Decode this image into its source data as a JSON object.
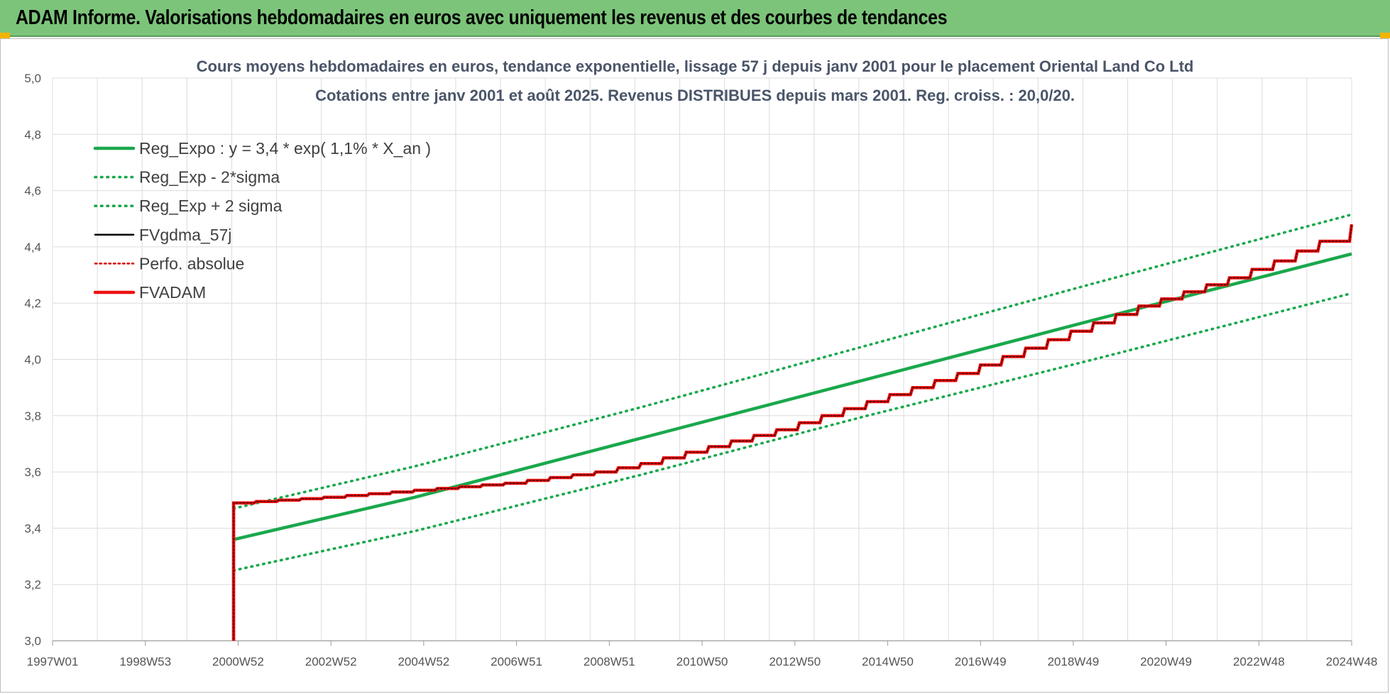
{
  "header": {
    "title": "ADAM Informe. Valorisations hebdomadaires en euros avec uniquement les revenus et des courbes de tendances"
  },
  "colors": {
    "header_bg": "#7cc47a",
    "reg_green": "#1aa84c",
    "fvgdma_black": "#000000",
    "fvadam_red": "#ee1111",
    "perfo_red": "#d40000"
  },
  "chart_data": {
    "type": "line",
    "title": "Cours moyens hebdomadaires en euros, tendance exponentielle, lissage 57 j depuis janv 2001 pour le placement Oriental Land Co Ltd",
    "subtitle": "Cotations entre janv 2001 et août 2025. Revenus DISTRIBUES depuis mars 2001. Reg. croiss. : 20,0/20.",
    "xlabel": "",
    "ylabel": "",
    "x_tick_labels": [
      "1997W01",
      "1998W53",
      "2000W52",
      "2002W52",
      "2004W52",
      "2006W51",
      "2008W51",
      "2010W50",
      "2012W50",
      "2014W50",
      "2016W49",
      "2018W49",
      "2020W49",
      "2022W48",
      "2024W48"
    ],
    "xlim": [
      1997.0,
      2025.7
    ],
    "y_tick_labels": [
      "3,0",
      "3,2",
      "3,4",
      "3,6",
      "3,8",
      "4,0",
      "4,2",
      "4,4",
      "4,6",
      "4,8",
      "5,0"
    ],
    "ylim": [
      3.0,
      5.0
    ],
    "grid": true,
    "legend_position": "top-left",
    "legend": [
      {
        "label": "Reg_Expo : y = 3,4 * exp( 1,1% *  X_an )",
        "style": "solid-green"
      },
      {
        "label": "Reg_Exp - 2*sigma",
        "style": "dotted-green"
      },
      {
        "label": "Reg_Exp + 2 sigma",
        "style": "dotted-green"
      },
      {
        "label": "FVgdma_57j",
        "style": "solid-black"
      },
      {
        "label": "Perfo. absolue",
        "style": "dotted-red"
      },
      {
        "label": "FVADAM",
        "style": "solid-red"
      }
    ],
    "series": [
      {
        "name": "Reg_Expo : y = 3,4 * exp( 1,1% *  X_an )",
        "x": [
          2001.0,
          2005.0,
          2010.0,
          2015.0,
          2020.0,
          2025.7
        ],
        "y": [
          3.36,
          3.51,
          3.72,
          3.93,
          4.14,
          4.375
        ]
      },
      {
        "name": "Reg_Exp - 2*sigma",
        "x": [
          2001.0,
          2005.0,
          2010.0,
          2015.0,
          2020.0,
          2025.7
        ],
        "y": [
          3.25,
          3.39,
          3.59,
          3.8,
          4.0,
          4.235
        ]
      },
      {
        "name": "Reg_Exp + 2 sigma",
        "x": [
          2001.0,
          2005.0,
          2010.0,
          2015.0,
          2020.0,
          2025.7
        ],
        "y": [
          3.47,
          3.62,
          3.83,
          4.05,
          4.27,
          4.515
        ]
      },
      {
        "name": "FVgdma_57j",
        "x": [
          2001.0,
          2001.0,
          2003.0,
          2005.0,
          2007.0,
          2009.0,
          2010.0,
          2011.0,
          2012.0,
          2013.0,
          2014.0,
          2015.0,
          2016.0,
          2017.0,
          2018.0,
          2019.0,
          2020.0,
          2021.0,
          2022.0,
          2023.0,
          2024.0,
          2025.0,
          2025.7
        ],
        "y": [
          3.0,
          3.49,
          3.51,
          3.535,
          3.56,
          3.6,
          3.63,
          3.67,
          3.71,
          3.75,
          3.8,
          3.85,
          3.9,
          3.95,
          4.01,
          4.07,
          4.13,
          4.19,
          4.24,
          4.29,
          4.35,
          4.42,
          4.48
        ]
      },
      {
        "name": "Perfo. absolue",
        "x": [
          2001.0,
          2001.0,
          2003.0,
          2005.0,
          2007.0,
          2009.0,
          2010.0,
          2011.0,
          2012.0,
          2013.0,
          2014.0,
          2015.0,
          2016.0,
          2017.0,
          2018.0,
          2019.0,
          2020.0,
          2021.0,
          2022.0,
          2023.0,
          2024.0,
          2025.0,
          2025.7
        ],
        "y": [
          3.0,
          3.49,
          3.51,
          3.535,
          3.56,
          3.6,
          3.63,
          3.67,
          3.71,
          3.75,
          3.8,
          3.85,
          3.9,
          3.95,
          4.01,
          4.07,
          4.13,
          4.19,
          4.24,
          4.29,
          4.35,
          4.42,
          4.48
        ]
      },
      {
        "name": "FVADAM",
        "x": [
          2001.0,
          2001.0,
          2003.0,
          2005.0,
          2007.0,
          2009.0,
          2010.0,
          2011.0,
          2012.0,
          2013.0,
          2014.0,
          2015.0,
          2016.0,
          2017.0,
          2018.0,
          2019.0,
          2020.0,
          2021.0,
          2022.0,
          2023.0,
          2024.0,
          2025.0,
          2025.7
        ],
        "y": [
          3.0,
          3.49,
          3.51,
          3.535,
          3.56,
          3.6,
          3.63,
          3.67,
          3.71,
          3.75,
          3.8,
          3.85,
          3.9,
          3.95,
          4.01,
          4.07,
          4.13,
          4.19,
          4.24,
          4.29,
          4.35,
          4.42,
          4.48
        ]
      }
    ]
  }
}
